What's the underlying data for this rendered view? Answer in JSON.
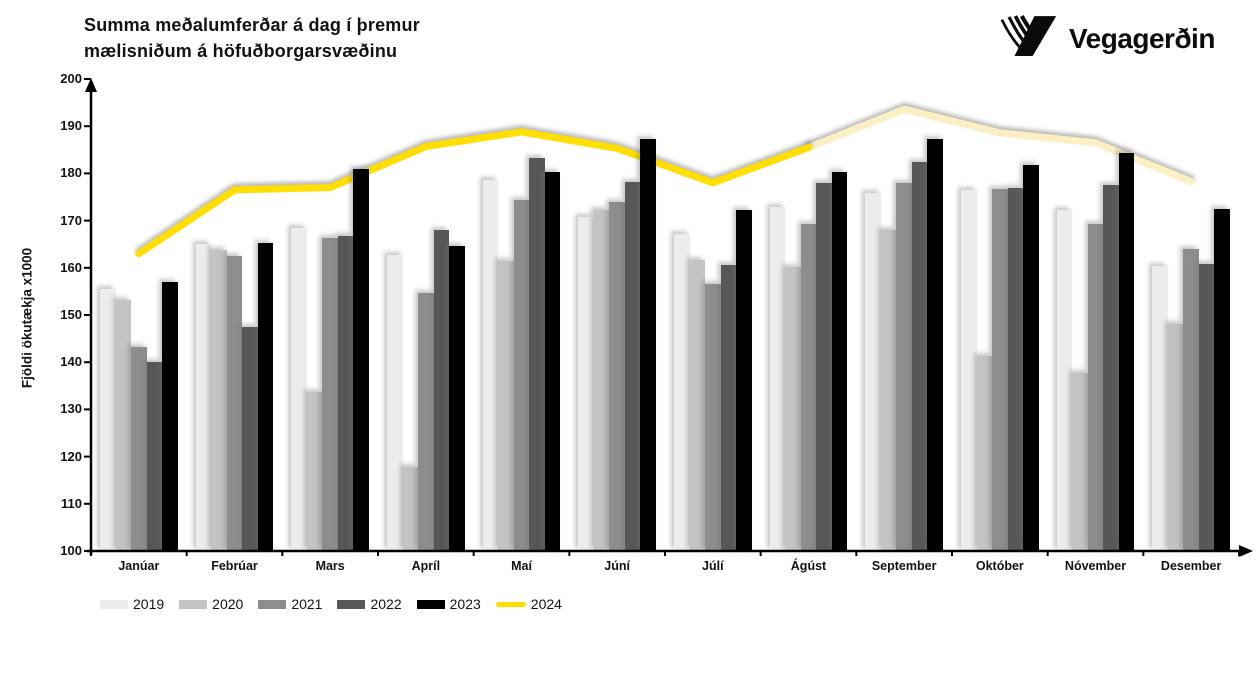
{
  "header": {
    "title_line1": "Summa meðalumferðar á dag í þremur",
    "title_line2": "mælisniðum á höfuðborgarsvæðinu",
    "logo_text": "Vegagerðin"
  },
  "chart_data": {
    "type": "bar",
    "subtype": "grouped-bars-with-line-overlay",
    "title": "Summa meðalumferðar á dag í þremur mælisniðum á höfuðborgarsvæðinu",
    "ylabel": "Fjöldi ökutækja x1000",
    "xlabel": "",
    "ylim": [
      100,
      200
    ],
    "yticks": [
      100,
      110,
      120,
      130,
      140,
      150,
      160,
      170,
      180,
      190,
      200
    ],
    "grid": false,
    "legend_position": "bottom",
    "categories": [
      "Janúar",
      "Febrúar",
      "Mars",
      "Apríl",
      "Maí",
      "Júní",
      "Júlí",
      "Ágúst",
      "September",
      "Október",
      "Nóvember",
      "Desember"
    ],
    "bar_series": [
      {
        "name": "2019",
        "color": "#ececec",
        "values": [
          155.5,
          165.0,
          168.4,
          162.8,
          178.5,
          170.8,
          167.2,
          172.8,
          175.8,
          176.5,
          172.2,
          160.3
        ]
      },
      {
        "name": "2020",
        "color": "#c3c3c3",
        "values": [
          153.2,
          163.8,
          133.6,
          117.8,
          161.5,
          172.3,
          161.7,
          160.2,
          168.0,
          141.3,
          137.8,
          148.0
        ]
      },
      {
        "name": "2021",
        "color": "#8d8d8d",
        "values": [
          143.2,
          162.6,
          166.4,
          154.6,
          174.3,
          174.0,
          156.5,
          169.3,
          177.9,
          176.6,
          169.3,
          164.0
        ]
      },
      {
        "name": "2022",
        "color": "#575757",
        "values": [
          140.1,
          147.5,
          166.8,
          168.0,
          183.2,
          178.2,
          160.6,
          178.0,
          182.5,
          176.9,
          177.6,
          160.7
        ]
      },
      {
        "name": "2023",
        "color": "#000000",
        "values": [
          157.0,
          165.3,
          181.0,
          164.6,
          180.4,
          187.2,
          172.2,
          180.4,
          187.2,
          181.7,
          184.3,
          172.5
        ]
      }
    ],
    "line_series": {
      "name": "2024",
      "color_solid": "#ffde00",
      "color_pale": "#faf0c3",
      "solid_through_index": 7,
      "values": [
        163.0,
        176.5,
        177.0,
        185.7,
        188.8,
        185.3,
        178.0,
        185.5,
        193.6,
        188.6,
        186.5,
        178.3
      ]
    }
  }
}
